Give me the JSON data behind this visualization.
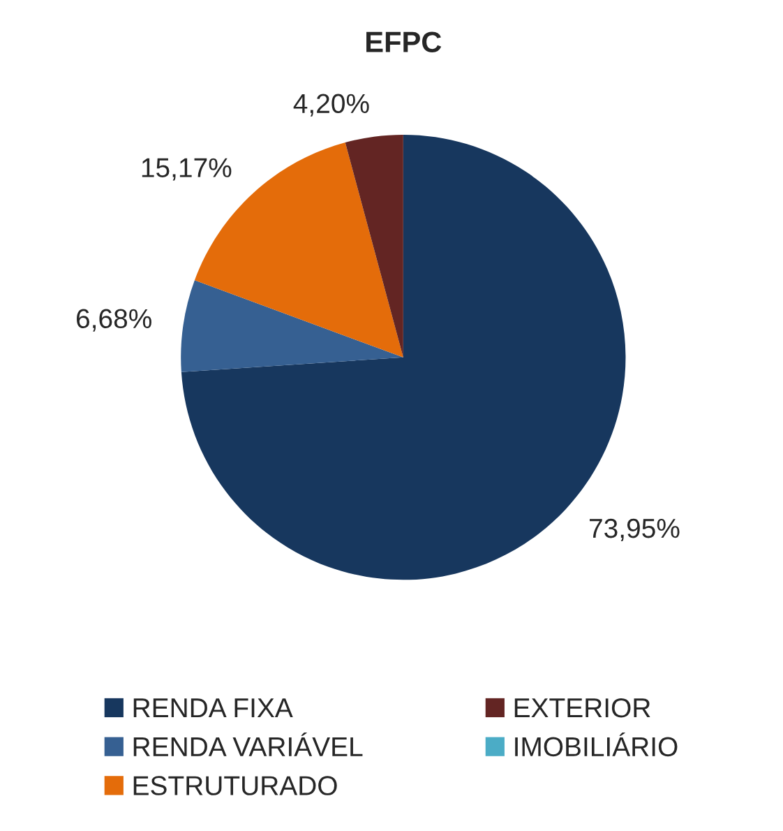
{
  "chart_data": {
    "type": "pie",
    "title": "EFPC",
    "categories": [
      "RENDA FIXA",
      "RENDA VARIÁVEL",
      "ESTRUTURADO",
      "EXTERIOR",
      "IMOBILIÁRIO"
    ],
    "values": [
      73.95,
      6.68,
      15.17,
      4.2,
      0
    ],
    "value_labels": [
      "73,95%",
      "6,68%",
      "15,17%",
      "4,20%",
      null
    ],
    "colors": [
      "#17375e",
      "#366092",
      "#e46c0a",
      "#632523",
      "#4bacc6"
    ],
    "legend": "bottom"
  }
}
